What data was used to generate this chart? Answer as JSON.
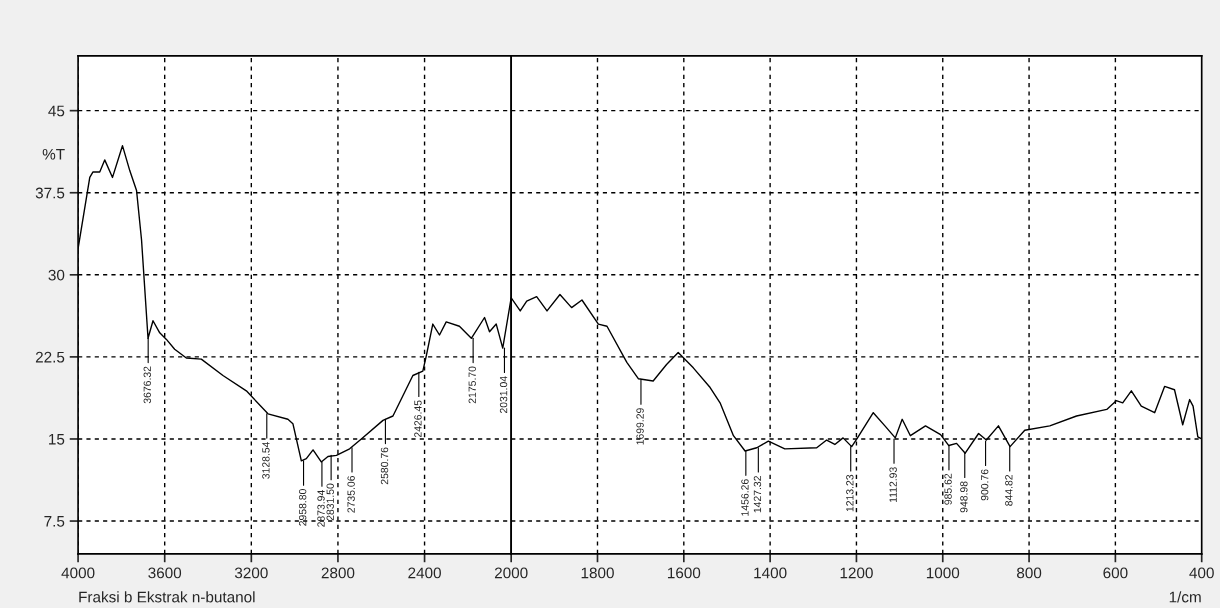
{
  "chart_data": [
    {
      "type": "line",
      "ylabel": "%T",
      "xlim": [
        4000,
        2000
      ],
      "xticks": [
        4000,
        3600,
        3200,
        2800,
        2400
      ],
      "ylim": [
        4.5,
        50
      ],
      "yticks": [
        7.5,
        15,
        22.5,
        30,
        37.5,
        45
      ],
      "grid": true,
      "line_style": "solid",
      "marker": "none",
      "series": [
        {
          "color": "#000000",
          "x": [
            4000,
            3946,
            3931,
            3900,
            3877,
            3841,
            3795,
            3761,
            3730,
            3707,
            3677,
            3654,
            3623,
            3592,
            3554,
            3500,
            3431,
            3331,
            3223,
            3123,
            3031,
            3008,
            2969,
            2946,
            2915,
            2877,
            2846,
            2807,
            2746,
            2692,
            2592,
            2546,
            2454,
            2408,
            2392,
            2362,
            2331,
            2300,
            2239,
            2184,
            2123,
            2100,
            2069,
            2039,
            2000
          ],
          "values": [
            32.4,
            38.9,
            39.4,
            39.4,
            40.5,
            38.9,
            41.8,
            39.5,
            37.7,
            33.2,
            24.2,
            25.8,
            24.7,
            24.1,
            23.2,
            22.4,
            22.3,
            20.8,
            19.4,
            17.3,
            16.8,
            16.4,
            13.0,
            13.2,
            14.0,
            12.9,
            13.4,
            13.5,
            14.1,
            15.0,
            16.7,
            17.1,
            20.8,
            21.2,
            22.6,
            25.5,
            24.5,
            25.7,
            25.3,
            24.2,
            26.1,
            24.8,
            25.5,
            23.3,
            27.9
          ]
        }
      ],
      "annotations": [
        {
          "text": "3676.32",
          "x": 3676.32,
          "y": 24.2
        },
        {
          "text": "3128.54",
          "x": 3128.54,
          "y": 17.3
        },
        {
          "text": "2958.80",
          "x": 2958.8,
          "y": 13.0
        },
        {
          "text": "2873.94",
          "x": 2873.94,
          "y": 12.9
        },
        {
          "text": "2831.50",
          "x": 2831.5,
          "y": 13.5
        },
        {
          "text": "2735.06",
          "x": 2735.06,
          "y": 14.2
        },
        {
          "text": "2580.76",
          "x": 2580.76,
          "y": 16.8
        },
        {
          "text": "2426.45",
          "x": 2426.45,
          "y": 21.1
        },
        {
          "text": "2175.70",
          "x": 2175.7,
          "y": 24.2
        },
        {
          "text": "2031.04",
          "x": 2031.04,
          "y": 23.3
        },
        "Fraksi b Ekstrak n-butanol"
      ]
    },
    {
      "type": "line",
      "xlabel": "1/cm",
      "xlim": [
        2000,
        400
      ],
      "xticks": [
        2000,
        1800,
        1600,
        1400,
        1200,
        1000,
        800,
        600,
        400
      ],
      "ylim": [
        4.5,
        50
      ],
      "yticks": [
        7.5,
        15,
        22.5,
        30,
        37.5,
        45
      ],
      "tick_labels": "x",
      "grid": true,
      "line_style": "solid",
      "marker": "none",
      "series": [
        {
          "color": "#000000",
          "x": [
            2000,
            1979,
            1964,
            1941,
            1917,
            1887,
            1860,
            1836,
            1798,
            1778,
            1732,
            1705,
            1671,
            1640,
            1613,
            1578,
            1539,
            1516,
            1485,
            1458,
            1431,
            1404,
            1366,
            1292,
            1269,
            1250,
            1231,
            1211,
            1199,
            1161,
            1134,
            1110,
            1094,
            1075,
            1040,
            1005,
            986,
            968,
            948,
            917,
            899,
            871,
            844,
            810,
            752,
            690,
            620,
            598,
            583,
            563,
            540,
            509,
            486,
            463,
            444,
            428,
            420,
            409,
            400
          ],
          "values": [
            27.9,
            26.7,
            27.6,
            28.0,
            26.7,
            28.2,
            27.0,
            27.7,
            25.5,
            25.3,
            22.0,
            20.5,
            20.3,
            21.8,
            22.9,
            21.5,
            19.7,
            18.3,
            15.3,
            13.9,
            14.2,
            14.8,
            14.1,
            14.2,
            14.9,
            14.5,
            15.1,
            14.3,
            15.0,
            17.4,
            16.2,
            15.1,
            16.8,
            15.3,
            16.2,
            15.4,
            14.4,
            14.6,
            13.7,
            15.5,
            14.9,
            16.2,
            14.3,
            15.8,
            16.2,
            17.1,
            17.7,
            18.5,
            18.3,
            19.4,
            18.0,
            17.4,
            19.8,
            19.5,
            16.3,
            18.6,
            18.0,
            15.2,
            15.0
          ]
        }
      ],
      "annotations": [
        {
          "text": "1699.29",
          "x": 1699.29,
          "y": 20.4
        },
        {
          "text": "1456.26",
          "x": 1456.26,
          "y": 13.9
        },
        {
          "text": "1427.32",
          "x": 1427.32,
          "y": 14.2
        },
        {
          "text": "1213.23",
          "x": 1213.23,
          "y": 14.3
        },
        {
          "text": "1112.93",
          "x": 1112.93,
          "y": 15.0
        },
        {
          "text": "985.62",
          "x": 985.62,
          "y": 14.4
        },
        {
          "text": "948.98",
          "x": 948.98,
          "y": 13.7
        },
        {
          "text": "900.76",
          "x": 900.76,
          "y": 14.8
        },
        {
          "text": "844.82",
          "x": 844.82,
          "y": 14.3
        }
      ]
    }
  ]
}
